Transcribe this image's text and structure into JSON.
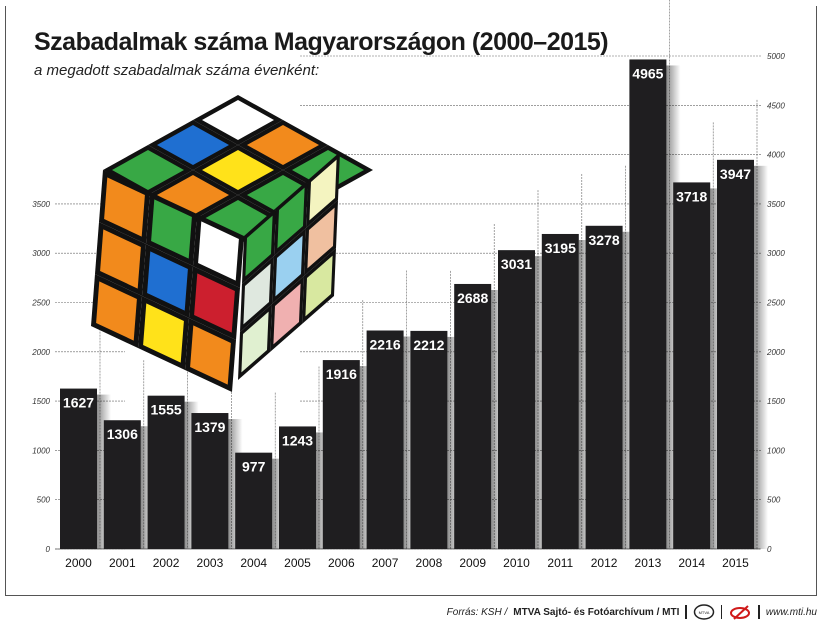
{
  "chart_data": {
    "type": "bar",
    "title": "Szabadalmak száma Magyarországon (2000–2015)",
    "subtitle": "a megadott szabadalmak száma évenként:",
    "categories": [
      "2000",
      "2001",
      "2002",
      "2003",
      "2004",
      "2005",
      "2006",
      "2007",
      "2008",
      "2009",
      "2010",
      "2011",
      "2012",
      "2013",
      "2014",
      "2015"
    ],
    "values": [
      1627,
      1306,
      1555,
      1379,
      977,
      1243,
      1916,
      2216,
      2212,
      2688,
      3031,
      3195,
      3278,
      4965,
      3718,
      3947
    ],
    "ylim": [
      0,
      5000
    ],
    "left_axis_ticks": [
      0,
      500,
      1000,
      1500,
      2000,
      2500,
      3000,
      3500
    ],
    "right_axis_ticks": [
      0,
      500,
      1000,
      1500,
      2000,
      2500,
      3000,
      3500,
      4000,
      4500,
      5000
    ],
    "grid": "dotted",
    "bar_color": "#1f1e20",
    "data_labels": true
  },
  "footer": {
    "source_label": "Forrás: KSH /",
    "credit": "MTVA Sajtó- és Fotóarchívum / MTI",
    "logo1": "MTVA",
    "url": "www.mti.hu"
  },
  "decoration": {
    "image": "rubiks-cube"
  }
}
